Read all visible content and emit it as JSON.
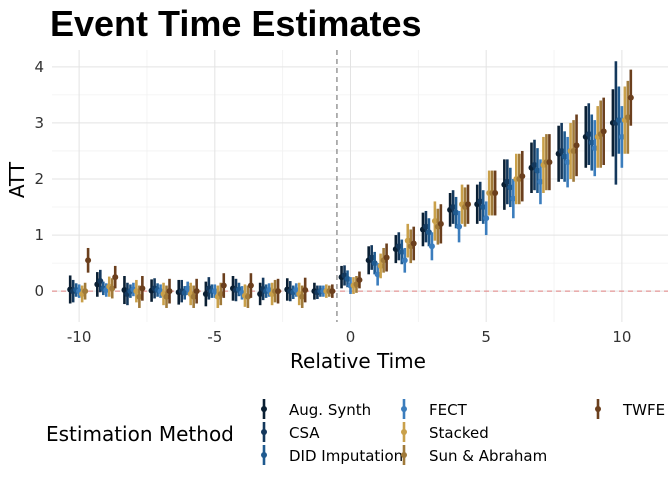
{
  "chart_data": {
    "type": "scatter",
    "title": "Event Time Estimates",
    "xlabel": "Relative Time",
    "ylabel": "ATT",
    "xlim": [
      -11,
      11.7
    ],
    "ylim": [
      -0.55,
      4.3
    ],
    "x_ticks": [
      -10,
      -5,
      0,
      5,
      10
    ],
    "y_ticks": [
      0,
      1,
      2,
      3,
      4
    ],
    "grid": true,
    "reference_lines": {
      "vertical_x": -0.5,
      "horizontal_y": 0
    },
    "legend": {
      "title": "Estimation Method",
      "placement": "bottom",
      "entries": [
        "Aug. Synth",
        "CSA",
        "DID Imputation",
        "FECT",
        "Stacked",
        "Sun & Abraham",
        "TWFE"
      ]
    },
    "series": [
      {
        "name": "Aug. Synth",
        "color": "#0a1f33",
        "offset": -0.33,
        "values": [
          0.03,
          0.12,
          0.02,
          0.01,
          -0.02,
          -0.05,
          0.05,
          -0.05,
          0.03,
          0.0,
          0.25,
          0.55,
          0.75,
          1.1,
          1.45,
          1.55,
          1.9,
          2.2,
          2.45,
          2.75,
          3.0
        ],
        "half_widths": [
          0.25,
          0.22,
          0.25,
          0.2,
          0.22,
          0.22,
          0.22,
          0.2,
          0.2,
          0.15,
          0.2,
          0.25,
          0.25,
          0.3,
          0.3,
          0.35,
          0.45,
          0.45,
          0.5,
          0.55,
          0.6
        ]
      },
      {
        "name": "CSA",
        "color": "#14385c",
        "offset": -0.22,
        "values": [
          0.0,
          0.18,
          -0.05,
          0.05,
          0.0,
          0.05,
          0.02,
          0.04,
          0.0,
          -0.02,
          0.28,
          0.6,
          0.8,
          1.15,
          1.5,
          1.6,
          1.95,
          2.25,
          2.5,
          2.8,
          3.0
        ],
        "half_widths": [
          0.2,
          0.2,
          0.2,
          0.18,
          0.2,
          0.2,
          0.2,
          0.2,
          0.18,
          0.12,
          0.18,
          0.22,
          0.25,
          0.28,
          0.3,
          0.35,
          0.4,
          0.45,
          0.5,
          0.55,
          1.1
        ]
      },
      {
        "name": "DID Imputation",
        "color": "#1f5a8f",
        "offset": -0.11,
        "values": [
          0.02,
          0.05,
          0.0,
          0.02,
          -0.03,
          0.0,
          0.03,
          0.0,
          -0.02,
          0.0,
          0.22,
          0.5,
          0.7,
          1.05,
          1.4,
          1.5,
          1.85,
          2.15,
          2.4,
          2.65,
          3.05
        ],
        "half_widths": [
          0.12,
          0.12,
          0.12,
          0.12,
          0.12,
          0.12,
          0.12,
          0.12,
          0.12,
          0.1,
          0.15,
          0.2,
          0.22,
          0.25,
          0.28,
          0.3,
          0.35,
          0.4,
          0.45,
          0.5,
          0.6
        ]
      },
      {
        "name": "FECT",
        "color": "#3b7dbd",
        "offset": 0.0,
        "values": [
          0.0,
          0.02,
          0.03,
          0.0,
          0.05,
          0.0,
          -0.03,
          0.02,
          0.02,
          0.0,
          0.1,
          0.3,
          0.55,
          0.8,
          1.15,
          1.3,
          1.65,
          1.95,
          2.3,
          2.55,
          2.75
        ],
        "half_widths": [
          0.12,
          0.12,
          0.12,
          0.12,
          0.12,
          0.12,
          0.12,
          0.12,
          0.12,
          0.1,
          0.15,
          0.2,
          0.22,
          0.25,
          0.28,
          0.3,
          0.35,
          0.4,
          0.45,
          0.5,
          0.55
        ]
      },
      {
        "name": "Stacked",
        "color": "#c9a04a",
        "offset": 0.11,
        "values": [
          -0.05,
          0.08,
          0.0,
          -0.05,
          -0.05,
          -0.1,
          -0.08,
          -0.05,
          -0.05,
          0.0,
          0.1,
          0.45,
          0.9,
          1.25,
          1.55,
          1.75,
          2.0,
          2.25,
          2.5,
          2.75,
          3.05
        ],
        "half_widths": [
          0.15,
          0.18,
          0.2,
          0.2,
          0.2,
          0.2,
          0.2,
          0.2,
          0.2,
          0.12,
          0.15,
          0.22,
          0.3,
          0.35,
          0.35,
          0.4,
          0.45,
          0.5,
          0.5,
          0.55,
          0.6
        ]
      },
      {
        "name": "Sun & Abraham",
        "color": "#a07a3a",
        "offset": 0.22,
        "values": [
          0.0,
          0.05,
          -0.1,
          -0.1,
          -0.1,
          -0.05,
          -0.1,
          0.0,
          -0.1,
          0.0,
          0.12,
          0.55,
          0.8,
          1.15,
          1.5,
          1.75,
          2.0,
          2.3,
          2.5,
          2.8,
          3.1
        ],
        "half_widths": [
          0.15,
          0.18,
          0.2,
          0.2,
          0.2,
          0.2,
          0.2,
          0.2,
          0.2,
          0.1,
          0.15,
          0.22,
          0.3,
          0.32,
          0.35,
          0.4,
          0.45,
          0.5,
          0.55,
          0.6,
          0.65
        ]
      },
      {
        "name": "TWFE",
        "color": "#6b3f1d",
        "offset": 0.33,
        "values": [
          0.55,
          0.25,
          0.05,
          0.0,
          0.0,
          0.1,
          0.1,
          0.0,
          0.02,
          0.0,
          0.2,
          0.6,
          0.85,
          1.2,
          1.55,
          1.75,
          2.05,
          2.3,
          2.6,
          2.85,
          3.45
        ],
        "half_widths": [
          0.22,
          0.2,
          0.22,
          0.22,
          0.22,
          0.22,
          0.22,
          0.22,
          0.22,
          0.12,
          0.15,
          0.25,
          0.3,
          0.35,
          0.35,
          0.4,
          0.45,
          0.5,
          0.55,
          0.6,
          0.5
        ]
      }
    ],
    "x": [
      -10,
      -9,
      -8,
      -7,
      -6,
      -5,
      -4,
      -3,
      -2,
      -1,
      0,
      1,
      2,
      3,
      4,
      5,
      6,
      7,
      8,
      9,
      10
    ]
  }
}
